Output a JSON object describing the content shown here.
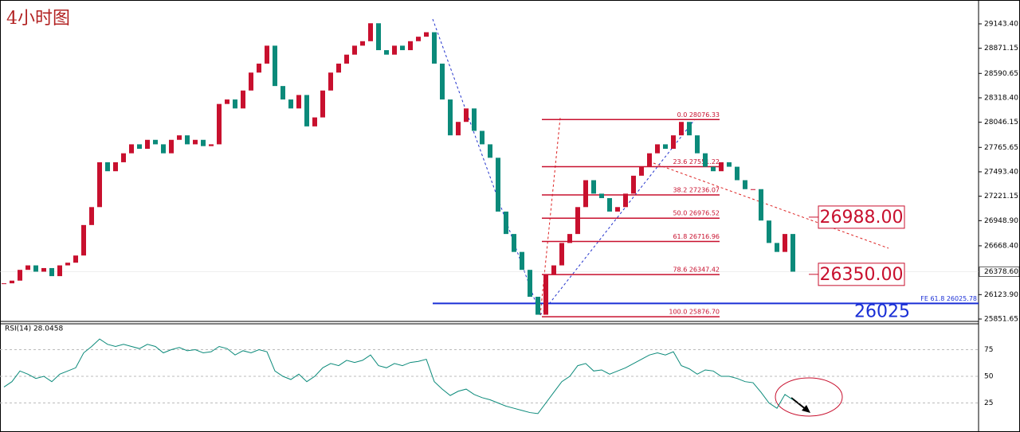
{
  "chart_data": {
    "type": "candlestick",
    "title": "4小时图",
    "ylim": [
      25834,
      29365
    ],
    "yticks": [
      {
        "value": 29143.4,
        "label": "29143.40"
      },
      {
        "value": 28871.15,
        "label": "28871.15"
      },
      {
        "value": 28590.65,
        "label": "28590.65"
      },
      {
        "value": 28318.4,
        "label": "28318.40"
      },
      {
        "value": 28046.15,
        "label": "28046.15"
      },
      {
        "value": 27765.65,
        "label": "27765.65"
      },
      {
        "value": 27493.4,
        "label": "27493.40"
      },
      {
        "value": 27221.15,
        "label": "27221.15"
      },
      {
        "value": 26948.9,
        "label": "26948.90"
      },
      {
        "value": 26668.4,
        "label": "26668.40"
      },
      {
        "value": 26123.9,
        "label": "26123.90"
      },
      {
        "value": 25851.65,
        "label": "25851.65"
      }
    ],
    "current_price": {
      "value": 26378.6,
      "label": "26378.60"
    },
    "up_color": "#c8102e",
    "down_color": "#0b8a7a",
    "closes": [
      26250,
      26280,
      26400,
      26450,
      26380,
      26420,
      26330,
      26450,
      26480,
      26560,
      26900,
      27100,
      27600,
      27500,
      27600,
      27700,
      27800,
      27750,
      27850,
      27800,
      27700,
      27850,
      27900,
      27800,
      27850,
      27780,
      27800,
      28250,
      28300,
      28200,
      28400,
      28600,
      28700,
      28900,
      28450,
      28300,
      28200,
      28350,
      28000,
      28100,
      28400,
      28600,
      28700,
      28800,
      28900,
      28950,
      29150,
      28850,
      28800,
      28900,
      28850,
      28950,
      29000,
      29050,
      28700,
      28300,
      27900,
      28050,
      28200,
      27950,
      27800,
      27650,
      27050,
      26800,
      26600,
      26400,
      26100,
      25900,
      26350,
      26450,
      26700,
      26800,
      27100,
      27400,
      27250,
      27200,
      27050,
      27100,
      27250,
      27450,
      27550,
      27700,
      27800,
      27750,
      27900,
      28050,
      27900,
      27700,
      27550,
      27500,
      27600,
      27550,
      27400,
      27300,
      27300,
      26950,
      26700,
      26600,
      26800,
      26380
    ],
    "fib_levels": [
      {
        "label": "0.0  28076.33",
        "value": 28076.33
      },
      {
        "label": "23.6  27551.22",
        "value": 27551.22
      },
      {
        "label": "38.2  27236.07",
        "value": 27236.07
      },
      {
        "label": "50.0  26976.52",
        "value": 26976.52
      },
      {
        "label": "61.8  26716.96",
        "value": 26716.96
      },
      {
        "label": "78.6  26347.42",
        "value": 26347.42
      },
      {
        "label": "100.0  25876.70",
        "value": 25876.7
      }
    ],
    "fe_level": {
      "label": "FE 61.8  26025.78",
      "value": 26025.78
    },
    "annotations": [
      {
        "text": "26988.00",
        "value": 26988
      },
      {
        "text": "26350.00",
        "value": 26350
      },
      {
        "text": "26025",
        "value": 26025
      }
    ],
    "rsi": {
      "label": "RSI(14) 28.0458",
      "color": "#0b8a7a",
      "ylim": [
        0,
        100
      ],
      "yticks": [
        25,
        50,
        75
      ],
      "values": [
        40,
        45,
        55,
        52,
        48,
        50,
        45,
        52,
        55,
        58,
        72,
        78,
        85,
        80,
        78,
        80,
        78,
        76,
        80,
        78,
        72,
        75,
        77,
        74,
        75,
        72,
        73,
        78,
        76,
        70,
        74,
        72,
        75,
        73,
        55,
        50,
        47,
        52,
        45,
        50,
        58,
        62,
        60,
        65,
        63,
        65,
        70,
        60,
        58,
        62,
        60,
        63,
        64,
        66,
        45,
        38,
        32,
        36,
        38,
        33,
        30,
        28,
        25,
        22,
        20,
        18,
        16,
        15,
        25,
        35,
        45,
        50,
        60,
        62,
        55,
        56,
        52,
        55,
        58,
        62,
        66,
        70,
        72,
        70,
        73,
        60,
        57,
        52,
        56,
        55,
        50,
        50,
        48,
        45,
        44,
        35,
        25,
        20,
        33,
        28
      ]
    }
  }
}
